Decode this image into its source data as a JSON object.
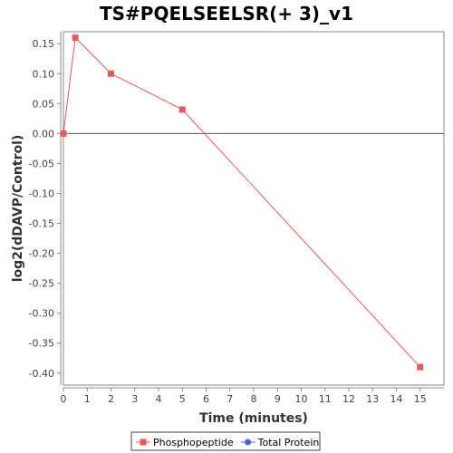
{
  "chart_data": {
    "type": "line",
    "title": "TS#PQELSEELSR(+ 3)_v1",
    "xlabel": "Time (minutes)",
    "ylabel": "log2(dDAVP/Control)",
    "xlim": [
      0,
      16
    ],
    "ylim": [
      -0.42,
      0.17
    ],
    "x_ticks": [
      0,
      1,
      2,
      3,
      4,
      5,
      6,
      7,
      8,
      9,
      10,
      11,
      12,
      13,
      14,
      15
    ],
    "y_ticks": [
      0.15,
      0.1,
      0.05,
      0.0,
      -0.05,
      -0.1,
      -0.15,
      -0.2,
      -0.25,
      -0.3,
      -0.35,
      -0.4
    ],
    "y_tick_labels": [
      "0.15",
      "0.10",
      "0.05",
      "0.00",
      "-0.05",
      "-0.10",
      "-0.15",
      "-0.20",
      "-0.25",
      "-0.30",
      "-0.35",
      "-0.40"
    ],
    "zero_line": 0,
    "grid": false,
    "legend_position": "bottom-center",
    "series": [
      {
        "name": "Phosphopeptide",
        "color": "#e8585a",
        "marker": "square",
        "x": [
          0,
          0.5,
          2,
          5,
          15
        ],
        "y": [
          0.0,
          0.16,
          0.1,
          0.04,
          -0.39
        ]
      },
      {
        "name": "Total Protein",
        "color": "#5a5ae8",
        "marker": "circle",
        "x": [],
        "y": []
      }
    ]
  }
}
